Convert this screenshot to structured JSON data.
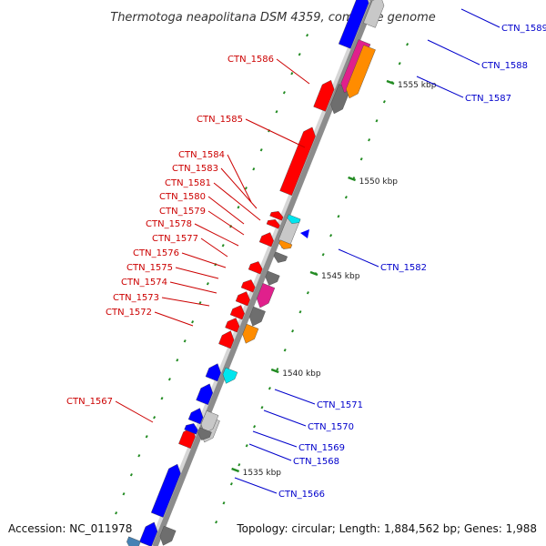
{
  "title": "Thermotoga neapolitana DSM 4359, complete genome",
  "footer": {
    "accession": "Accession: NC_011978",
    "topology": "Topology: circular; Length: 1,884,562 bp; Genes: 1,988"
  },
  "colors": {
    "left_label": "#cc0000",
    "right_label": "#0000cc",
    "scale": "#228b22",
    "backbone": "#8c8c8c",
    "red": "#ff0000",
    "blue": "#0000ff",
    "grey": "#6e6e6e",
    "lightgrey": "#c8c8c8",
    "orange": "#ff8c00",
    "pink": "#e0208c",
    "cyan": "#00e5ee",
    "tan": "#c8a070",
    "steelblue": "#4682b4"
  },
  "kbp_ticks": [
    "1535 kbp",
    "1540 kbp",
    "1545 kbp",
    "1550 kbp",
    "1555 kbp"
  ],
  "left_labels": [
    "CTN_1586",
    "CTN_1585",
    "CTN_1584",
    "CTN_1583",
    "CTN_1581",
    "CTN_1580",
    "CTN_1579",
    "CTN_1578",
    "CTN_1577",
    "CTN_1576",
    "CTN_1575",
    "CTN_1574",
    "CTN_1573",
    "CTN_1572",
    "CTN_1567"
  ],
  "right_labels": [
    "CTN_1589",
    "CTN_1588",
    "CTN_1587",
    "CTN_1582",
    "CTN_1571",
    "CTN_1570",
    "CTN_1569",
    "CTN_1568",
    "CTN_1566"
  ]
}
